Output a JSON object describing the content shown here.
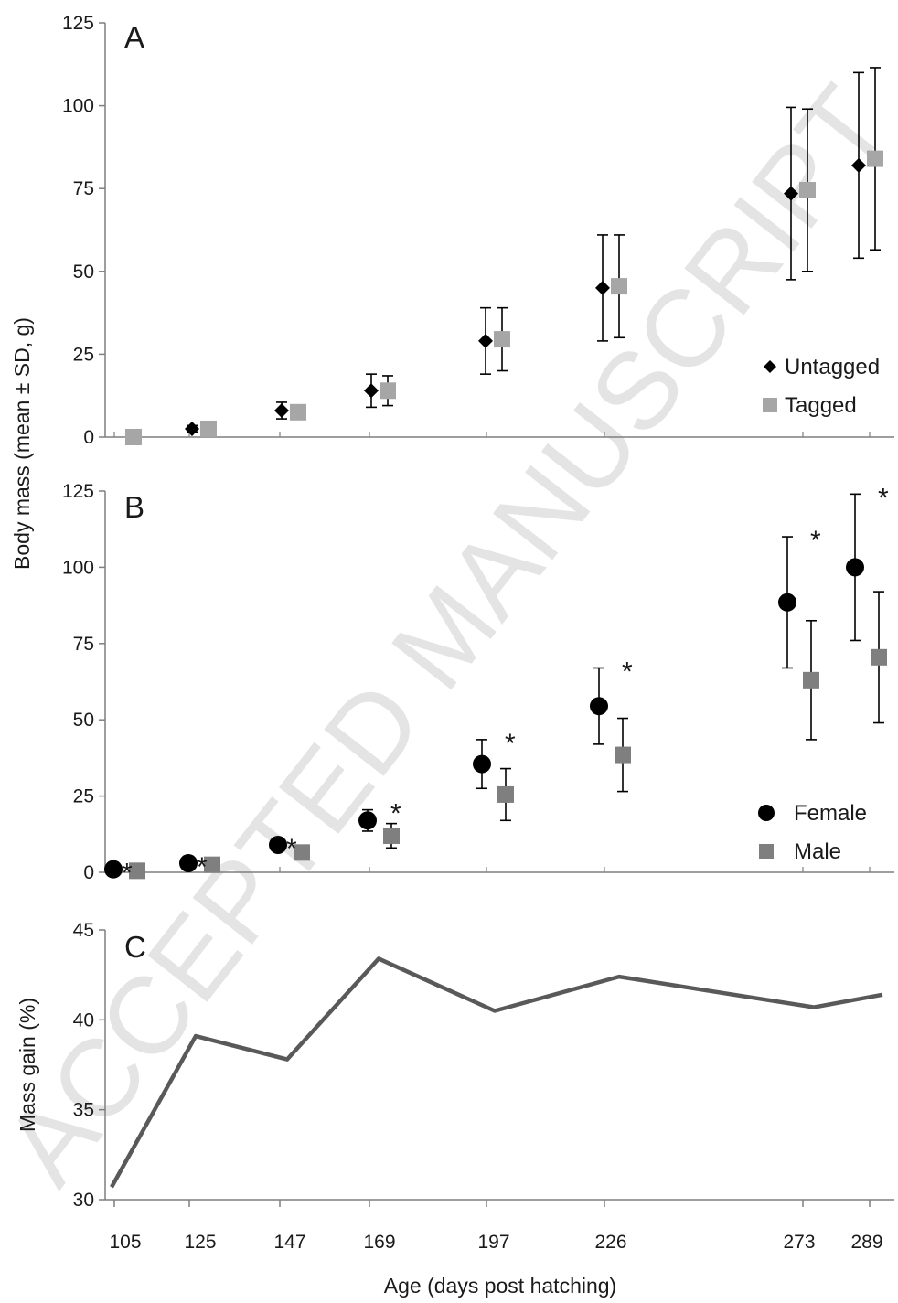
{
  "watermark": "ACCEPTED MANUSCRIPT",
  "x_axis": {
    "title": "Age (days post hatching)",
    "ticks": [
      105,
      125,
      147,
      169,
      197,
      226,
      273,
      289
    ]
  },
  "y_axis_shared_title": "Body mass (mean ± SD, g)",
  "colors": {
    "untagged": "#000000",
    "tagged": "#a6a6a6",
    "female": "#000000",
    "male": "#7f7f7f",
    "line": "#595959"
  },
  "chart_data": [
    {
      "panel": "A",
      "type": "scatter",
      "ylim": [
        0,
        125
      ],
      "yticks": [
        0,
        25,
        50,
        75,
        100,
        125
      ],
      "legend_position": "bottom-right",
      "x": [
        105,
        125,
        147,
        169,
        197,
        226,
        273,
        289
      ],
      "series": [
        {
          "name": "Untagged",
          "marker": "diamond",
          "values": [
            null,
            2.5,
            8,
            14,
            29,
            45,
            73.5,
            82
          ],
          "sd": [
            null,
            1,
            2.5,
            5,
            10,
            16,
            26,
            28
          ]
        },
        {
          "name": "Tagged",
          "marker": "square",
          "values": [
            0,
            2.5,
            7.5,
            14,
            29.5,
            45.5,
            74.5,
            84
          ],
          "sd": [
            null,
            1,
            2,
            4.5,
            9.5,
            15.5,
            24.5,
            27.5
          ]
        }
      ]
    },
    {
      "panel": "B",
      "type": "scatter",
      "ylim": [
        0,
        125
      ],
      "yticks": [
        0,
        25,
        50,
        75,
        100,
        125
      ],
      "legend_position": "bottom-right",
      "x": [
        105,
        125,
        147,
        169,
        197,
        226,
        273,
        289
      ],
      "significance": [
        "*",
        "*",
        "*",
        "*",
        "*",
        "*",
        "*",
        "*"
      ],
      "series": [
        {
          "name": "Female",
          "marker": "circle",
          "values": [
            1,
            3,
            9,
            17,
            35.5,
            54.5,
            88.5,
            100
          ],
          "sd": [
            null,
            null,
            null,
            3.5,
            8,
            12.5,
            21.5,
            24
          ]
        },
        {
          "name": "Male",
          "marker": "square",
          "values": [
            0.5,
            2.5,
            6.5,
            12,
            25.5,
            38.5,
            63,
            70.5
          ],
          "sd": [
            null,
            null,
            null,
            4,
            8.5,
            12,
            19.5,
            21.5
          ]
        }
      ]
    },
    {
      "panel": "C",
      "type": "line",
      "ylabel": "Mass gain (%)",
      "ylim": [
        30,
        45
      ],
      "yticks": [
        30,
        35,
        40,
        45
      ],
      "x": [
        105,
        125,
        147,
        169,
        197,
        226,
        273,
        289
      ],
      "values": [
        30.7,
        39.1,
        37.8,
        43.4,
        40.5,
        42.4,
        40.7,
        41.4
      ]
    }
  ]
}
